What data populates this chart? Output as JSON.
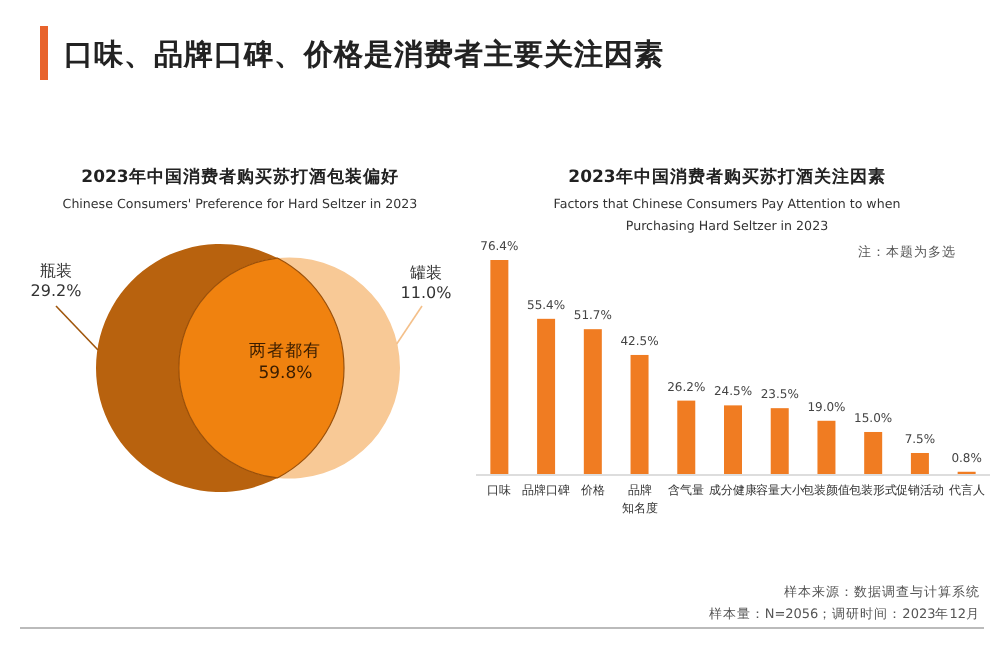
{
  "chart_data": [
    {
      "type": "other",
      "title": "2023年中国消费者购买苏打酒包装偏好",
      "subtitle": "Chinese Consumers' Preference for Hard Seltzer in 2023",
      "categories": [
        "瓶装",
        "两者都有",
        "罐装"
      ],
      "values": [
        29.2,
        59.8,
        11.0
      ],
      "colors": [
        "#b8620e",
        "#f0820f",
        "#f8c996"
      ],
      "value_labels": [
        "29.2%",
        "59.8%",
        "11.0%"
      ],
      "annotations": [
        "口味、品牌口碑、价格是消费者主要关注因素"
      ]
    },
    {
      "type": "bar",
      "title": "2023年中国消费者购买苏打酒关注因素",
      "subtitle": "Factors that Chinese Consumers Pay Attention to when Purchasing Hard Seltzer in 2023",
      "categories": [
        "口味",
        "品牌口碑",
        "价格",
        "品牌知名度",
        "含气量",
        "成分健康",
        "容量大小",
        "包装颜值",
        "包装形式",
        "促销活动",
        "代言人"
      ],
      "values": [
        76.4,
        55.4,
        51.7,
        42.5,
        26.2,
        24.5,
        23.5,
        19.0,
        15.0,
        7.5,
        0.8
      ],
      "value_labels": [
        "76.4%",
        "55.4%",
        "51.7%",
        "42.5%",
        "26.2%",
        "24.5%",
        "23.5%",
        "19.0%",
        "15.0%",
        "7.5%",
        "0.8%"
      ],
      "color": "#f07c22",
      "annotations": [
        "注：本题为多选",
        "样本来源：数据调查与计算系统",
        "样本量：N=2056；调研时间：2023年12月"
      ]
    }
  ]
}
